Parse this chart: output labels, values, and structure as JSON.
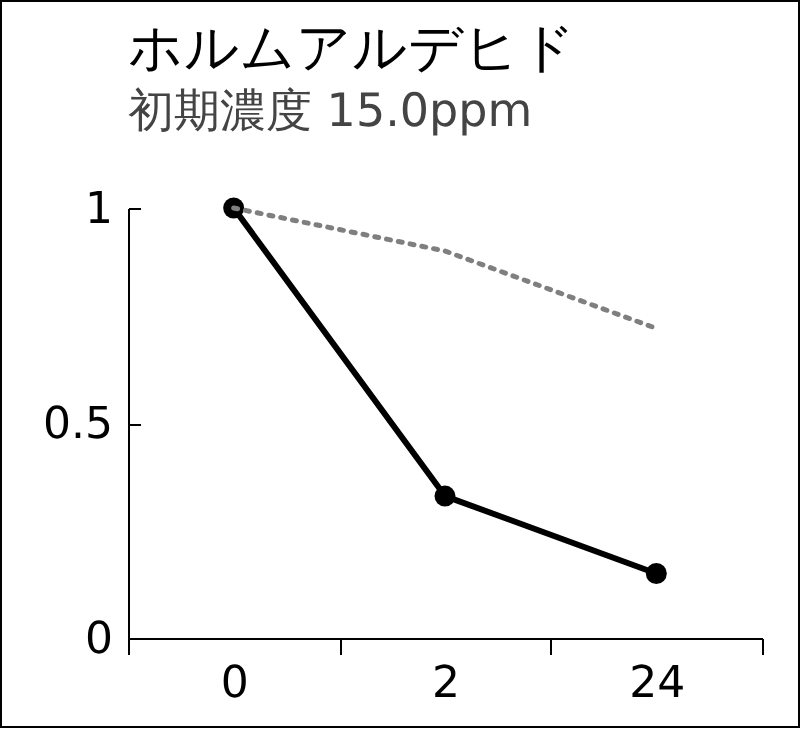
{
  "chart_data": {
    "type": "line",
    "title": "ホルムアルデヒド",
    "subtitle": "初期濃度 15.0ppm",
    "categories": [
      "0",
      "2",
      "24"
    ],
    "series": [
      {
        "color": "#000000",
        "values": [
          1,
          0.33,
          0.15
        ],
        "marker": "circle",
        "line_style": "solid"
      },
      {
        "color": "#7f7f7f",
        "values": [
          1,
          0.9,
          0.72
        ],
        "marker": "none",
        "line_style": "dotted"
      }
    ],
    "ylim": [
      0,
      1
    ],
    "yticks": [
      0,
      0.5,
      1
    ],
    "grid": false
  }
}
